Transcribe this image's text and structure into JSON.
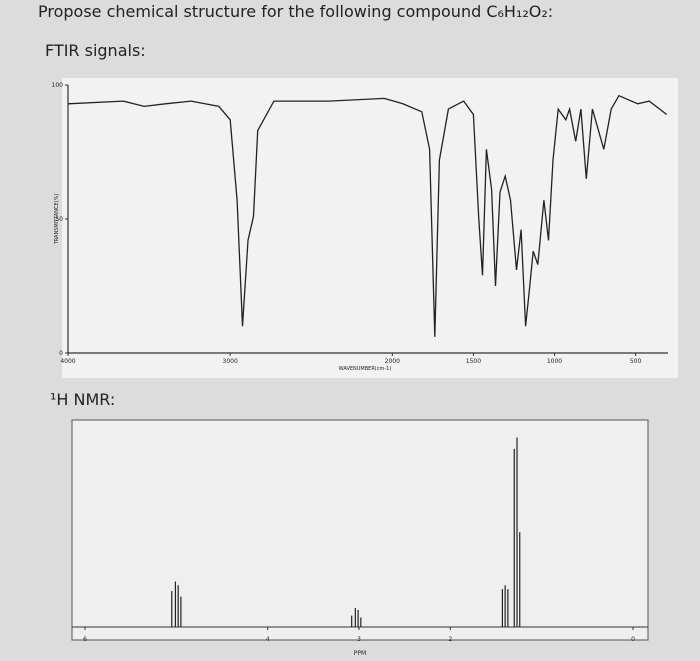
{
  "question": "Propose chemical structure for the following compound C₆H₁₂O₂:",
  "chart_data": [
    {
      "type": "line",
      "title": "FTIR signals:",
      "xlabel": "WAVENUMBER(cm-1)",
      "ylabel": "TRANSMITTANCE(%)",
      "x": [
        4000,
        3660,
        3530,
        3400,
        3240,
        3070,
        3000,
        2957,
        2924,
        2890,
        2856,
        2830,
        2730,
        2390,
        2050,
        1935,
        1818,
        1770,
        1738,
        1710,
        1654,
        1560,
        1500,
        1467,
        1444,
        1420,
        1388,
        1364,
        1336,
        1304,
        1271,
        1234,
        1206,
        1178,
        1154,
        1131,
        1103,
        1065,
        1037,
        1009,
        977,
        930,
        907,
        869,
        837,
        804,
        766,
        696,
        650,
        603,
        486,
        416,
        308
      ],
      "values": [
        93,
        94,
        92,
        93,
        94,
        92,
        87,
        57,
        10,
        42,
        51,
        83,
        94,
        94,
        95,
        93,
        90,
        76,
        6,
        72,
        91,
        94,
        89,
        50,
        29,
        76,
        61,
        25,
        60,
        66,
        57,
        31,
        46,
        10,
        24,
        38,
        33,
        57,
        42,
        72,
        91,
        87,
        91,
        79,
        91,
        65,
        91,
        76,
        91,
        96,
        93,
        94,
        89
      ],
      "color": "#222222",
      "xlim": [
        4000,
        300
      ],
      "xticks": [
        4000,
        3000,
        2000,
        1500,
        1000,
        500
      ],
      "ylim": [
        0,
        100
      ],
      "yticks": [
        0,
        50,
        100
      ]
    },
    {
      "type": "stem",
      "title": "¹H NMR:",
      "xlabel": "PPM",
      "x": [
        5.05,
        5.01,
        4.98,
        4.95,
        3.08,
        3.04,
        3.01,
        2.98,
        1.43,
        1.4,
        1.37,
        1.3,
        1.27,
        1.24
      ],
      "values": [
        0.19,
        0.24,
        0.22,
        0.16,
        0.06,
        0.1,
        0.09,
        0.05,
        0.2,
        0.22,
        0.2,
        0.94,
        1.0,
        0.5
      ],
      "color": "#222222",
      "xlim": [
        6,
        0
      ],
      "xticks": [
        6,
        4,
        3,
        2,
        0
      ],
      "ylim": [
        0,
        1.05
      ]
    }
  ]
}
